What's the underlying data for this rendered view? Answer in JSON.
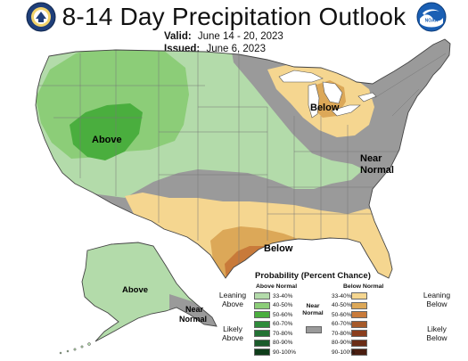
{
  "header": {
    "title": "8-14 Day Precipitation Outlook",
    "valid_label": "Valid:",
    "valid_value": "June 14 - 20, 2023",
    "issued_label": "Issued:",
    "issued_value": "June 6, 2023"
  },
  "map_labels": {
    "above_west": "Above",
    "below_lakes": "Below",
    "near_normal_line1": "Near",
    "near_normal_line2": "Normal",
    "below_texas": "Below",
    "above_alaska": "Above",
    "near_alaska_line1": "Near",
    "near_alaska_line2": "Normal"
  },
  "legend": {
    "title": "Probability (Percent Chance)",
    "above_header": "Above Normal",
    "below_header": "Below Normal",
    "near_label_line1": "Near",
    "near_label_line2": "Normal",
    "leaning_above_1": "Leaning",
    "leaning_above_2": "Above",
    "likely_above_1": "Likely",
    "likely_above_2": "Above",
    "leaning_below_1": "Leaning",
    "leaning_below_2": "Below",
    "likely_below_1": "Likely",
    "likely_below_2": "Below",
    "above_categories": [
      {
        "label": "33-40%",
        "color": "#b3dbaa"
      },
      {
        "label": "40-50%",
        "color": "#8ccd78"
      },
      {
        "label": "50-60%",
        "color": "#4aae3e"
      },
      {
        "label": "60-70%",
        "color": "#2e8b3a"
      },
      {
        "label": "70-80%",
        "color": "#237234"
      },
      {
        "label": "80-90%",
        "color": "#1a5a2a"
      },
      {
        "label": "90-100%",
        "color": "#0e3d1a"
      }
    ],
    "below_categories": [
      {
        "label": "33-40%",
        "color": "#f5d690"
      },
      {
        "label": "40-50%",
        "color": "#dca858"
      },
      {
        "label": "50-60%",
        "color": "#c87a3a"
      },
      {
        "label": "60-70%",
        "color": "#a65a2a"
      },
      {
        "label": "70-80%",
        "color": "#8a3e1e"
      },
      {
        "label": "80-90%",
        "color": "#6a2c16"
      },
      {
        "label": "90-100%",
        "color": "#4a1e10"
      }
    ],
    "near_color": "#9a9a9a"
  },
  "colors": {
    "near_normal": "#9a9a9a",
    "above_33_40": "#b3dbaa",
    "above_40_50": "#8ccd78",
    "above_50_60": "#4aae3e",
    "below_33_40": "#f5d690",
    "below_40_50": "#dca858",
    "below_50_60": "#c87a3a",
    "water": "#ffffff"
  },
  "logos": {
    "left": "department-of-commerce-seal-icon",
    "right": "noaa-logo-icon"
  }
}
